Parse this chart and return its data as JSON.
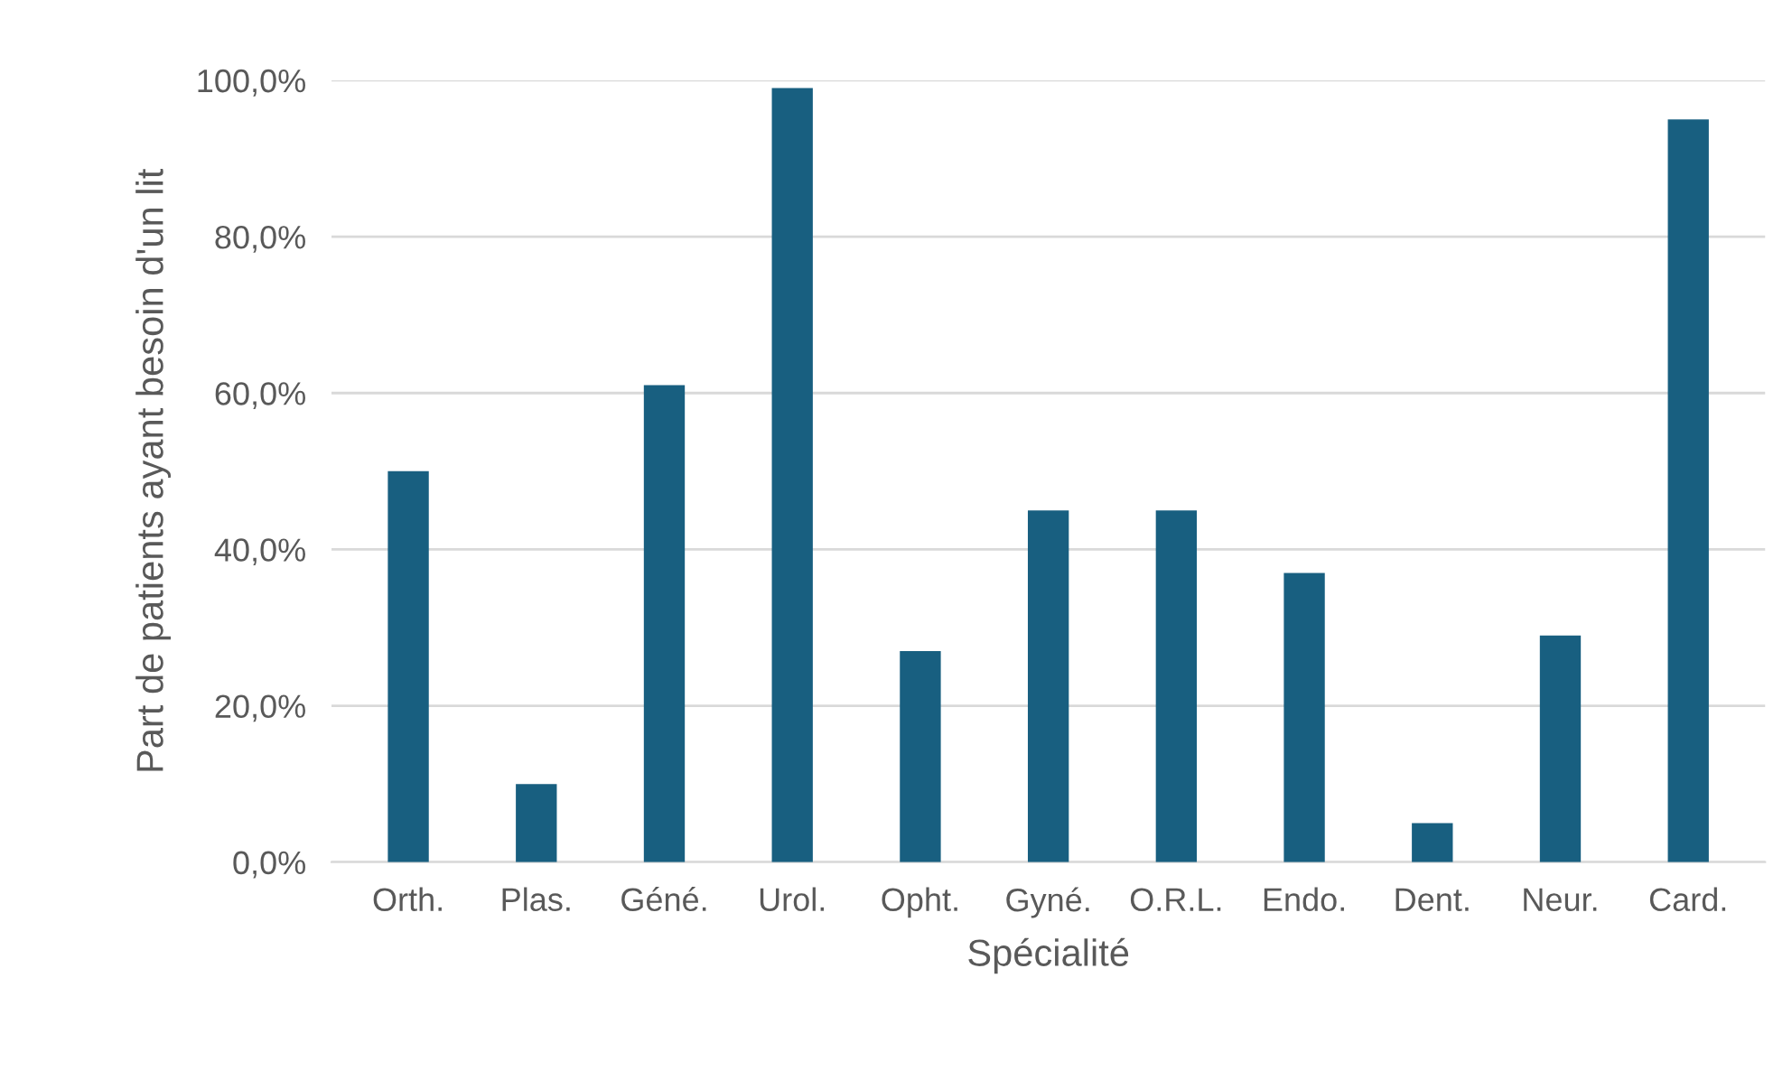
{
  "chart_data": {
    "type": "bar",
    "xlabel": "Spécialité",
    "ylabel": "Part de patients ayant besoin d'un lit",
    "categories": [
      "Orth.",
      "Plas.",
      "Géné.",
      "Urol.",
      "Opht.",
      "Gyné.",
      "O.R.L.",
      "Endo.",
      "Dent.",
      "Neur.",
      "Card."
    ],
    "values": [
      50,
      10,
      61,
      99,
      27,
      45,
      45,
      37,
      5,
      29,
      95
    ],
    "color": "#185f80",
    "ylim": [
      0,
      100
    ],
    "yticks": [
      {
        "value": 0,
        "label": "0,0%"
      },
      {
        "value": 20,
        "label": "20,0%"
      },
      {
        "value": 40,
        "label": "40,0%"
      },
      {
        "value": 60,
        "label": "60,0%"
      },
      {
        "value": 80,
        "label": "80,0%"
      },
      {
        "value": 100,
        "label": "100,0%"
      }
    ],
    "grid": "y"
  }
}
